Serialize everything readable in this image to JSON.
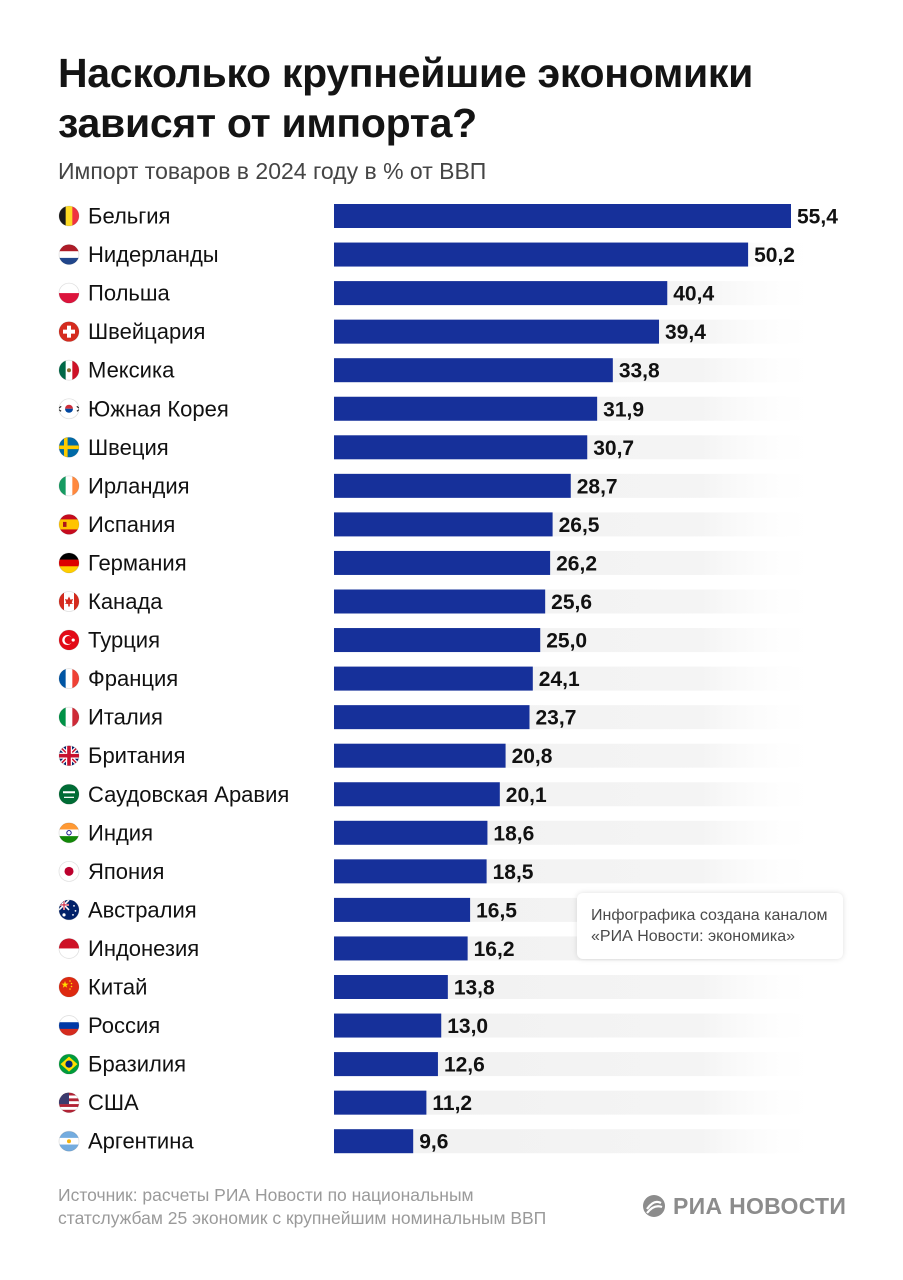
{
  "title": "Насколько крупнейшие экономики зависят от импорта?",
  "subtitle": "Импорт товаров в 2024 году в % от ВВП",
  "note": {
    "line1": "Инфографика создана каналом",
    "line2": "«РИА Новости: экономика»"
  },
  "source": {
    "line1": "Источник: расчеты РИА Новости по национальным",
    "line2": "статслужбам 25 экономик с крупнейшим номинальным ВВП"
  },
  "logo": {
    "text": "РИА НОВОСТИ",
    "icon": "ria-logo-icon"
  },
  "colors": {
    "bar": "#16309a",
    "track": "#f4f4f4",
    "label": "#111111",
    "source": "#9a9a9a"
  },
  "chart_data": {
    "type": "bar",
    "orientation": "horizontal",
    "title": "Насколько крупнейшие экономики зависят от импорта?",
    "subtitle": "Импорт товаров в 2024 году в % от ВВП",
    "categories": [
      "Бельгия",
      "Нидерланды",
      "Польша",
      "Швейцария",
      "Мексика",
      "Южная Корея",
      "Швеция",
      "Ирландия",
      "Испания",
      "Германия",
      "Канада",
      "Турция",
      "Франция",
      "Италия",
      "Британия",
      "Саудовская Аравия",
      "Индия",
      "Япония",
      "Австралия",
      "Индонезия",
      "Китай",
      "Россия",
      "Бразилия",
      "США",
      "Аргентина"
    ],
    "values": [
      55.4,
      50.2,
      40.4,
      39.4,
      33.8,
      31.9,
      30.7,
      28.7,
      26.5,
      26.2,
      25.6,
      25.0,
      24.1,
      23.7,
      20.8,
      20.1,
      18.6,
      18.5,
      16.5,
      16.2,
      13.8,
      13.0,
      12.6,
      11.2,
      9.6
    ],
    "value_labels": [
      "55,4",
      "50,2",
      "40,4",
      "39,4",
      "33,8",
      "31,9",
      "30,7",
      "28,7",
      "26,5",
      "26,2",
      "25,6",
      "25,0",
      "24,1",
      "23,7",
      "20,8",
      "20,1",
      "18,6",
      "18,5",
      "16,5",
      "16,2",
      "13,8",
      "13,0",
      "12,6",
      "11,2",
      "9,6"
    ],
    "flags": [
      "belgium-flag-icon",
      "netherlands-flag-icon",
      "poland-flag-icon",
      "switzerland-flag-icon",
      "mexico-flag-icon",
      "south-korea-flag-icon",
      "sweden-flag-icon",
      "ireland-flag-icon",
      "spain-flag-icon",
      "germany-flag-icon",
      "canada-flag-icon",
      "turkey-flag-icon",
      "france-flag-icon",
      "italy-flag-icon",
      "uk-flag-icon",
      "saudi-arabia-flag-icon",
      "india-flag-icon",
      "japan-flag-icon",
      "australia-flag-icon",
      "indonesia-flag-icon",
      "china-flag-icon",
      "russia-flag-icon",
      "brazil-flag-icon",
      "usa-flag-icon",
      "argentina-flag-icon"
    ],
    "xlim": [
      0,
      55.4
    ],
    "grid": false,
    "legend": "none"
  }
}
